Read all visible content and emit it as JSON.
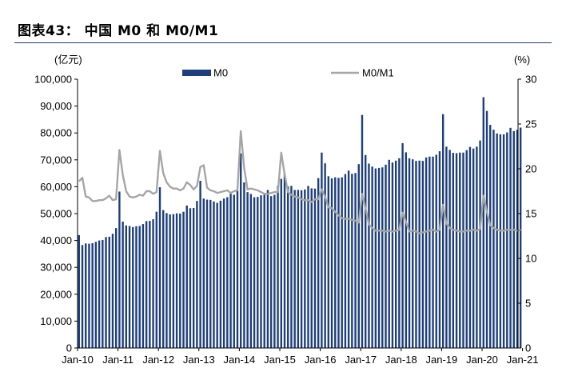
{
  "title": "图表43： 中国 M0 和 M0/M1",
  "chart_data": {
    "type": "bar+line",
    "y_left_unit": "(亿元)",
    "y_right_unit": "(%)",
    "y_left_ticks": [
      "0",
      "10,000",
      "20,000",
      "30,000",
      "40,000",
      "50,000",
      "60,000",
      "70,000",
      "80,000",
      "90,000",
      "100,000"
    ],
    "y_right_ticks": [
      "0",
      "5",
      "10",
      "15",
      "20",
      "25",
      "30"
    ],
    "ylim_left": [
      0,
      100000
    ],
    "ylim_right": [
      0,
      30
    ],
    "x_tick_labels": [
      "Jan-10",
      "Jan-11",
      "Jan-12",
      "Jan-13",
      "Jan-14",
      "Jan-15",
      "Jan-16",
      "Jan-17",
      "Jan-18",
      "Jan-19",
      "Jan-20",
      "Jan-21"
    ],
    "legend": [
      "M0",
      "M0/M1"
    ],
    "legend_position": "top-center",
    "colors": {
      "M0": "#1f3f7a",
      "M0/M1": "#a6a6a6"
    },
    "start_month": "2010-01",
    "series": [
      {
        "name": "M0",
        "type": "bar",
        "axis": "left",
        "values": [
          42000,
          38300,
          38900,
          38800,
          39000,
          39500,
          40000,
          40200,
          41300,
          41400,
          42500,
          44600,
          58200,
          47000,
          45600,
          45400,
          45000,
          45300,
          45400,
          46100,
          47200,
          47300,
          47900,
          50700,
          59800,
          51300,
          50200,
          49700,
          49800,
          50100,
          50000,
          50700,
          53000,
          52000,
          52100,
          54700,
          62200,
          55600,
          55200,
          55100,
          54500,
          54000,
          54800,
          55600,
          56100,
          57400,
          57000,
          58600,
          72400,
          61600,
          58000,
          57300,
          56100,
          56200,
          56800,
          57000,
          58800,
          56500,
          57000,
          60300,
          62900,
          65000,
          60100,
          60300,
          58800,
          58800,
          58700,
          59000,
          60300,
          59400,
          59300,
          63200,
          72700,
          68700,
          63900,
          63100,
          63500,
          63300,
          63500,
          64700,
          66000,
          64800,
          65100,
          68400,
          86700,
          71800,
          68600,
          67500,
          66800,
          67000,
          67200,
          68200,
          70000,
          69000,
          69700,
          70600,
          76200,
          72800,
          70600,
          70200,
          69600,
          69700,
          69600,
          70900,
          71200,
          71200,
          71900,
          73200,
          87000,
          74900,
          73700,
          72600,
          72500,
          72700,
          72700,
          73600,
          74800,
          74200,
          74900,
          77200,
          93300,
          88200,
          83000,
          81200,
          79800,
          79500,
          79500,
          80200,
          81900,
          80700,
          81200,
          82000
        ]
      },
      {
        "name": "M0/M1",
        "type": "line",
        "axis": "right",
        "values": [
          18.6,
          19.0,
          16.9,
          16.8,
          16.4,
          16.4,
          16.5,
          16.5,
          16.7,
          17.0,
          16.5,
          16.6,
          22.1,
          19.3,
          17.5,
          16.9,
          16.8,
          16.9,
          17.1,
          17.0,
          17.5,
          17.5,
          17.2,
          17.4,
          22.0,
          19.5,
          18.5,
          18.0,
          17.8,
          17.8,
          17.6,
          17.8,
          18.5,
          18.2,
          17.7,
          18.1,
          20.2,
          20.4,
          17.9,
          17.6,
          17.5,
          17.3,
          17.4,
          17.5,
          17.6,
          17.3,
          17.5,
          17.6,
          24.2,
          20.1,
          17.7,
          17.8,
          17.7,
          17.6,
          17.4,
          17.2,
          17.2,
          17.3,
          17.4,
          17.4,
          21.8,
          19.4,
          17.4,
          17.1,
          16.9,
          16.8,
          16.6,
          16.5,
          16.5,
          16.3,
          16.6,
          16.6,
          17.7,
          16.9,
          15.7,
          15.6,
          15.2,
          14.8,
          14.5,
          14.4,
          14.4,
          14.3,
          14.2,
          14.0,
          17.2,
          15.6,
          13.8,
          13.4,
          13.1,
          13.1,
          13.1,
          13.0,
          13.1,
          13.0,
          13.1,
          13.2,
          15.1,
          14.1,
          13.0,
          13.1,
          13.0,
          12.8,
          12.9,
          13.0,
          13.1,
          13.2,
          13.0,
          13.2,
          16.0,
          13.9,
          13.4,
          13.2,
          13.1,
          13.0,
          13.0,
          13.1,
          13.1,
          13.2,
          13.1,
          13.3,
          17.0,
          15.2,
          13.7,
          13.4,
          13.2,
          13.1,
          13.1,
          13.2,
          13.2,
          13.2,
          13.1,
          13.2
        ]
      }
    ]
  }
}
